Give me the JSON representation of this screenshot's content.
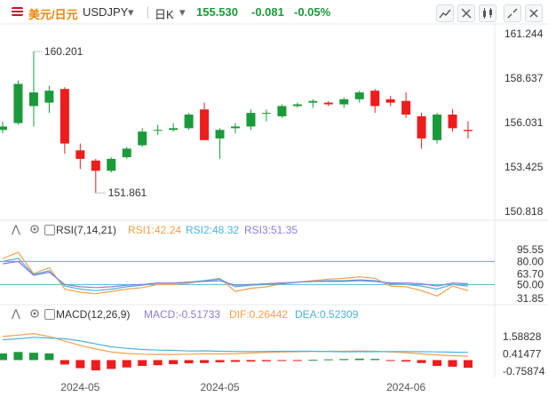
{
  "header": {
    "pair_cn": "美元/日元",
    "symbol": "USDJPY",
    "period": "日K",
    "price": "155.530",
    "change": "-0.081",
    "change_pct": "-0.05%"
  },
  "colors": {
    "up": "#1a9a3a",
    "down": "#ee1c1c",
    "rsi1": "#f5a04a",
    "rsi2": "#4ab4d8",
    "rsi3": "#8b7fd9",
    "macd": "#8b7fd9",
    "dif": "#f5a04a",
    "dea": "#4ab4d8"
  },
  "indicators": {
    "rsi": {
      "name": "RSI(7,14,21)",
      "rsi1": "RSI1:42.24",
      "rsi2": "RSI2:48.32",
      "rsi3": "RSI3:51.35"
    },
    "macd": {
      "name": "MACD(12,26,9)",
      "macd": "MACD:-0.51733",
      "dif": "DIF:0.26442",
      "dea": "DEA:0.52309"
    }
  },
  "chart_data": [
    {
      "type": "candlestick",
      "title": "USDJPY",
      "y_ticks": [
        "161.244",
        "158.637",
        "156.031",
        "153.425",
        "150.818"
      ],
      "ylim": [
        150.818,
        161.244
      ],
      "x_ticks": [
        "2024-05",
        "2024-05",
        "2024-06"
      ],
      "annotations": {
        "high": "160.201",
        "low": "151.861"
      },
      "candles": [
        {
          "o": 155.6,
          "h": 156.1,
          "l": 155.4,
          "c": 155.8
        },
        {
          "o": 156.0,
          "h": 158.5,
          "l": 155.9,
          "c": 158.3
        },
        {
          "o": 157.0,
          "h": 160.2,
          "l": 155.8,
          "c": 157.8
        },
        {
          "o": 157.2,
          "h": 158.2,
          "l": 156.6,
          "c": 157.9
        },
        {
          "o": 158.0,
          "h": 158.1,
          "l": 154.2,
          "c": 154.8
        },
        {
          "o": 154.4,
          "h": 154.8,
          "l": 153.3,
          "c": 153.9
        },
        {
          "o": 153.8,
          "h": 153.9,
          "l": 151.9,
          "c": 153.2
        },
        {
          "o": 153.2,
          "h": 154.0,
          "l": 153.1,
          "c": 153.9
        },
        {
          "o": 154.0,
          "h": 154.6,
          "l": 153.9,
          "c": 154.5
        },
        {
          "o": 154.7,
          "h": 155.7,
          "l": 154.6,
          "c": 155.5
        },
        {
          "o": 155.6,
          "h": 155.9,
          "l": 155.3,
          "c": 155.6
        },
        {
          "o": 155.6,
          "h": 156.0,
          "l": 155.5,
          "c": 155.7
        },
        {
          "o": 155.7,
          "h": 156.6,
          "l": 155.6,
          "c": 156.5
        },
        {
          "o": 156.8,
          "h": 157.2,
          "l": 155.0,
          "c": 155.0
        },
        {
          "o": 155.1,
          "h": 155.7,
          "l": 153.9,
          "c": 155.6
        },
        {
          "o": 155.7,
          "h": 156.0,
          "l": 155.4,
          "c": 155.8
        },
        {
          "o": 155.8,
          "h": 156.8,
          "l": 155.6,
          "c": 156.6
        },
        {
          "o": 156.6,
          "h": 156.8,
          "l": 156.1,
          "c": 156.6
        },
        {
          "o": 156.4,
          "h": 157.1,
          "l": 156.3,
          "c": 157.0
        },
        {
          "o": 157.0,
          "h": 157.2,
          "l": 156.9,
          "c": 157.1
        },
        {
          "o": 157.2,
          "h": 157.4,
          "l": 156.9,
          "c": 157.3
        },
        {
          "o": 157.2,
          "h": 157.3,
          "l": 157.0,
          "c": 157.1
        },
        {
          "o": 157.1,
          "h": 157.5,
          "l": 156.9,
          "c": 157.4
        },
        {
          "o": 157.4,
          "h": 157.9,
          "l": 157.2,
          "c": 157.8
        },
        {
          "o": 157.9,
          "h": 158.0,
          "l": 156.6,
          "c": 157.0
        },
        {
          "o": 157.4,
          "h": 157.6,
          "l": 157.0,
          "c": 157.2
        },
        {
          "o": 157.3,
          "h": 157.8,
          "l": 156.3,
          "c": 156.5
        },
        {
          "o": 156.4,
          "h": 156.6,
          "l": 154.5,
          "c": 155.1
        },
        {
          "o": 155.0,
          "h": 156.6,
          "l": 154.8,
          "c": 156.5
        },
        {
          "o": 156.5,
          "h": 156.8,
          "l": 155.5,
          "c": 155.7
        },
        {
          "o": 155.6,
          "h": 156.1,
          "l": 155.1,
          "c": 155.53
        }
      ]
    },
    {
      "type": "line",
      "title": "RSI(7,14,21)",
      "y_ticks": [
        "95.55",
        "80.00",
        "63.70",
        "50.00",
        "31.85"
      ],
      "ylim": [
        31.85,
        95.55
      ],
      "reference_lines": [
        80,
        50
      ],
      "series": [
        {
          "name": "RSI1",
          "values": [
            84,
            92,
            64,
            72,
            44,
            40,
            38,
            41,
            44,
            46,
            50,
            50,
            52,
            55,
            58,
            41,
            45,
            47,
            51,
            53,
            55,
            57,
            58,
            60,
            58,
            48,
            47,
            42,
            35,
            48,
            42
          ]
        },
        {
          "name": "RSI2",
          "values": [
            80,
            84,
            63,
            68,
            48,
            44,
            42,
            44,
            47,
            49,
            52,
            52,
            53,
            55,
            57,
            47,
            49,
            50,
            51,
            53,
            54,
            55,
            55,
            56,
            55,
            51,
            50,
            48,
            44,
            50,
            48
          ]
        },
        {
          "name": "RSI3",
          "values": [
            77,
            80,
            62,
            66,
            50,
            47,
            46,
            47,
            49,
            50,
            52,
            52,
            53,
            54,
            55,
            49,
            50,
            51,
            52,
            53,
            54,
            54,
            54,
            55,
            54,
            52,
            52,
            51,
            48,
            52,
            51
          ]
        }
      ]
    },
    {
      "type": "bar+line",
      "title": "MACD(12,26,9)",
      "y_ticks": [
        "1.58828",
        "0.41477",
        "-0.75874"
      ],
      "ylim": [
        -1.0,
        2.2
      ],
      "macd_histogram": [
        0.45,
        0.55,
        0.5,
        0.45,
        -0.3,
        -0.55,
        -0.7,
        -0.6,
        -0.5,
        -0.4,
        -0.35,
        -0.28,
        -0.22,
        -0.2,
        -0.15,
        -0.12,
        -0.1,
        -0.08,
        -0.05,
        -0.02,
        0.02,
        0.05,
        0.07,
        0.1,
        0.08,
        -0.05,
        -0.1,
        -0.2,
        -0.4,
        -0.45,
        -0.52
      ],
      "series": [
        {
          "name": "DIF",
          "values": [
            1.6,
            1.7,
            1.8,
            1.6,
            1.3,
            1.0,
            0.75,
            0.55,
            0.45,
            0.4,
            0.38,
            0.38,
            0.4,
            0.43,
            0.42,
            0.44,
            0.48,
            0.52,
            0.55,
            0.57,
            0.59,
            0.6,
            0.6,
            0.62,
            0.6,
            0.55,
            0.5,
            0.42,
            0.35,
            0.3,
            0.26
          ]
        },
        {
          "name": "DEA",
          "values": [
            1.37,
            1.45,
            1.55,
            1.5,
            1.45,
            1.3,
            1.1,
            0.9,
            0.8,
            0.72,
            0.68,
            0.66,
            0.62,
            0.63,
            0.6,
            0.59,
            0.58,
            0.59,
            0.6,
            0.6,
            0.6,
            0.58,
            0.56,
            0.57,
            0.57,
            0.58,
            0.58,
            0.57,
            0.56,
            0.54,
            0.52
          ]
        }
      ]
    }
  ]
}
